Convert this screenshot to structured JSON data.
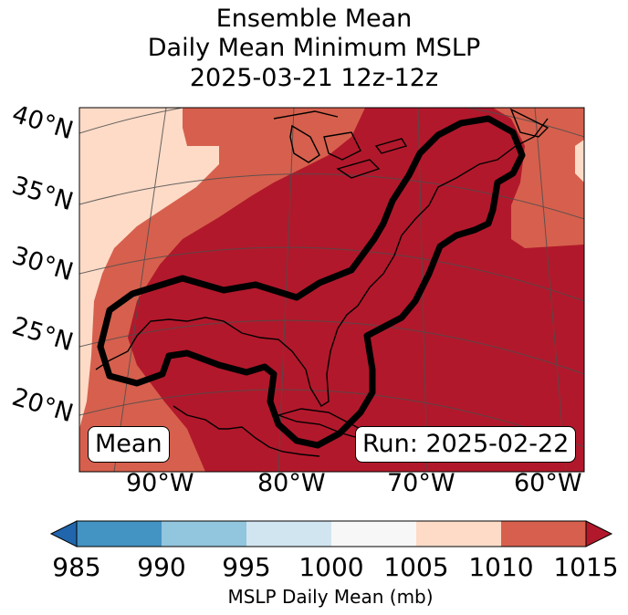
{
  "title": {
    "line1": "Ensemble Mean",
    "line2": "Daily Mean Minimum MSLP",
    "line3": "2025-03-21 12z-12z"
  },
  "map": {
    "lat_labels": [
      "40°N",
      "35°N",
      "30°N",
      "25°N",
      "20°N"
    ],
    "lon_labels": [
      "90°W",
      "80°W",
      "70°W",
      "60°W"
    ],
    "mean_label": "Mean",
    "run_label": "Run: 2025-02-22"
  },
  "colorbar": {
    "ticks": [
      "985",
      "990",
      "995",
      "1000",
      "1005",
      "1010",
      "1015"
    ],
    "label": "MSLP Daily Mean (mb)",
    "bin_colors": [
      "#4393c3",
      "#92c5de",
      "#d1e5f0",
      "#f7f7f7",
      "#fddbc7",
      "#d6604d",
      "#b2182b"
    ],
    "under_color": "#2166ac",
    "over_color": "#b2182b"
  },
  "colors": {
    "field_1005_1010": "#fddbc7",
    "field_1010_1015": "#d6604d",
    "field_above_1015": "#b2182b",
    "contour": "#000000",
    "coastline": "#000000",
    "gridline": "#4d4d4d"
  }
}
